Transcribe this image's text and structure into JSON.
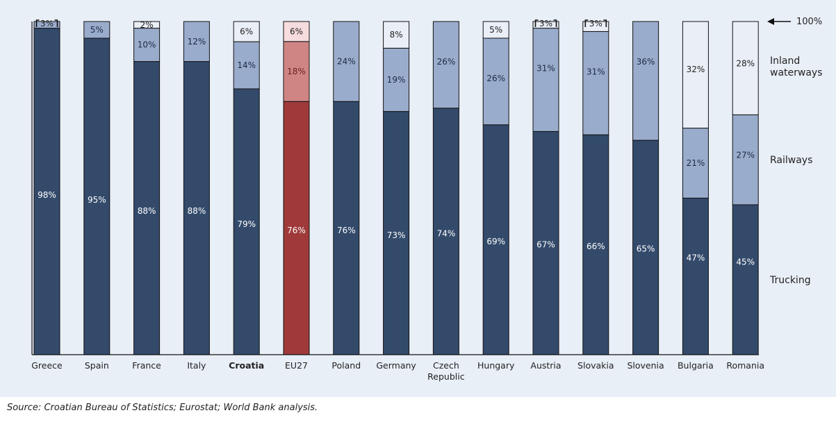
{
  "chart_data": {
    "type": "bar",
    "stacked": true,
    "normalized": true,
    "categories": [
      "Greece",
      "Spain",
      "France",
      "Italy",
      "Croatia",
      "EU27",
      "Poland",
      "Germany",
      "Czech Republic",
      "Hungary",
      "Austria",
      "Slovakia",
      "Slovenia",
      "Bulgaria",
      "Romania"
    ],
    "category_display": [
      [
        "Greece"
      ],
      [
        "Spain"
      ],
      [
        "France"
      ],
      [
        "Italy"
      ],
      [
        "Croatia"
      ],
      [
        "EU27"
      ],
      [
        "Poland"
      ],
      [
        "Germany"
      ],
      [
        "Czech",
        "Republic"
      ],
      [
        "Hungary"
      ],
      [
        "Austria"
      ],
      [
        "Slovakia"
      ],
      [
        "Slovenia"
      ],
      [
        "Bulgaria"
      ],
      [
        "Romania"
      ]
    ],
    "highlight_category": "EU27",
    "bold_category": "Croatia",
    "series": [
      {
        "name": "Trucking",
        "values": [
          98,
          95,
          88,
          88,
          79,
          76,
          76,
          73,
          74,
          69,
          67,
          66,
          65,
          47,
          45
        ],
        "labels": [
          "98%",
          "95%",
          "88%",
          "88%",
          "79%",
          "76%",
          "76%",
          "73%",
          "74%",
          "69%",
          "67%",
          "66%",
          "65%",
          "47%",
          "45%"
        ]
      },
      {
        "name": "Railways",
        "values": [
          2,
          5,
          10,
          12,
          14,
          18,
          24,
          19,
          26,
          26,
          31,
          31,
          36,
          21,
          27
        ],
        "labels": [
          "",
          "5%",
          "10%",
          "12%",
          "14%",
          "18%",
          "24%",
          "19%",
          "26%",
          "26%",
          "31%",
          "31%",
          "36%",
          "21%",
          "27%"
        ]
      },
      {
        "name": "Inland waterways",
        "values": [
          0,
          0,
          2,
          0,
          6,
          6,
          0,
          8,
          0,
          5,
          2,
          3,
          0,
          32,
          28
        ],
        "labels": [
          "",
          "",
          "2%",
          "",
          "6%",
          "6%",
          "",
          "8%",
          "",
          "5%",
          "",
          "",
          "",
          "32%",
          "28%"
        ]
      }
    ],
    "top_labels": [
      "3%",
      "",
      "",
      "",
      "",
      "",
      "",
      "",
      "",
      "",
      "3%",
      "3%",
      "",
      "",
      ""
    ],
    "top_labels_note": "3% shown in bracket at top for Greece, Austria, Slovakia",
    "legend": [
      {
        "name": "Inland waterways",
        "lines": [
          "Inland",
          "waterways"
        ]
      },
      {
        "name": "Railways",
        "lines": [
          "Railways"
        ]
      },
      {
        "name": "Trucking",
        "lines": [
          "Trucking"
        ]
      }
    ],
    "reference_label": "100%",
    "ylim": [
      0,
      100
    ],
    "colors": {
      "trucking": "#334a6b",
      "railways": "#9aaccc",
      "waterways": "#eaeef6",
      "eu_trucking": "#a03a3a",
      "eu_railways": "#d08585",
      "eu_waterways": "#f6dcdc",
      "background": "#e9eff7"
    },
    "source": "Source: Croatian Bureau of Statistics; Eurostat; World Bank analysis."
  }
}
